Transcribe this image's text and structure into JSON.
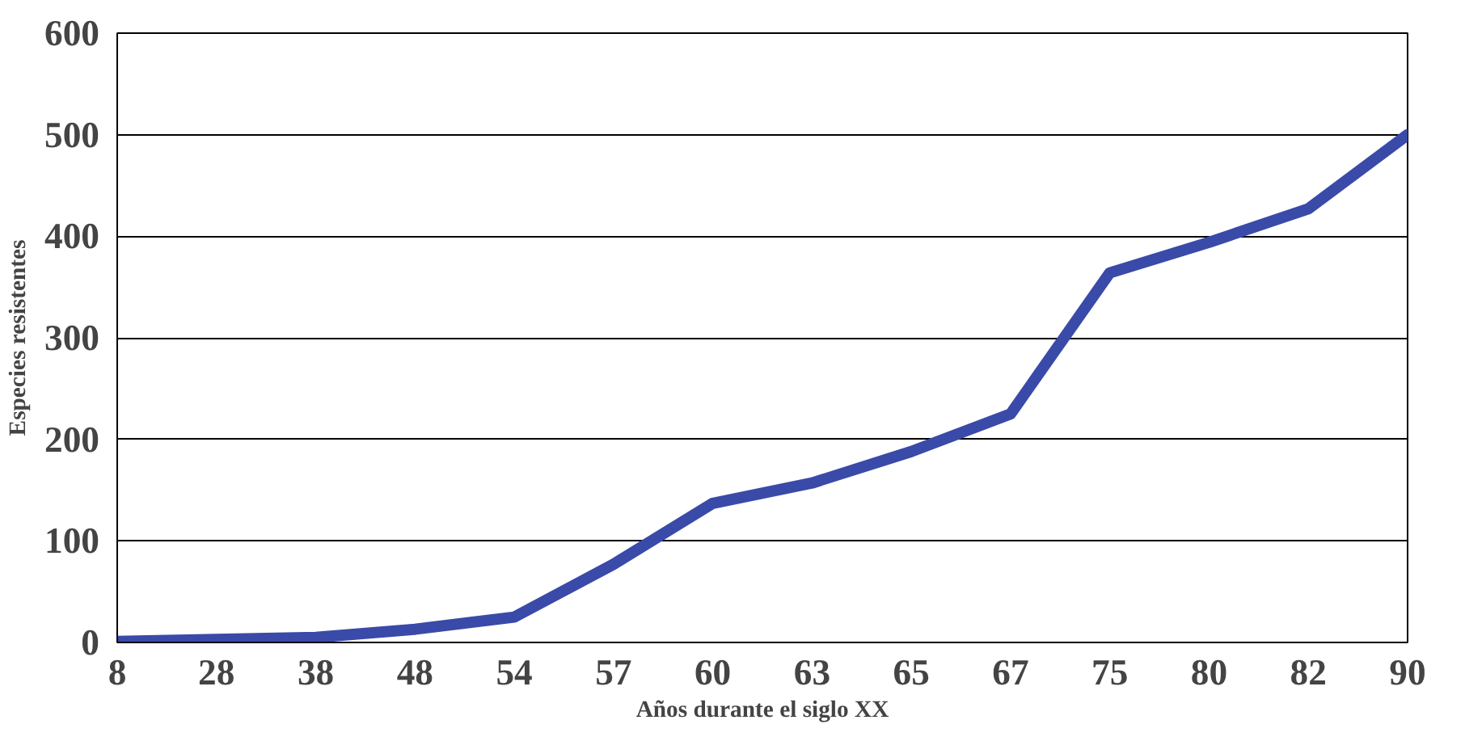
{
  "chart_data": {
    "type": "line",
    "xlabel": "Años durante el siglo XX",
    "ylabel": "Especies resistentes",
    "categories": [
      "8",
      "28",
      "38",
      "48",
      "54",
      "57",
      "60",
      "63",
      "65",
      "67",
      "75",
      "80",
      "82",
      "90"
    ],
    "series": [
      {
        "color": "#3a4aa8",
        "values": [
          1,
          3,
          5,
          13,
          25,
          77,
          137,
          157,
          188,
          225,
          364,
          394,
          427,
          500
        ]
      }
    ],
    "ylim": [
      0,
      600
    ],
    "yticks": [
      0,
      100,
      200,
      300,
      400,
      500,
      600
    ],
    "grid": "y",
    "marker": "none",
    "line_style": "solid"
  }
}
